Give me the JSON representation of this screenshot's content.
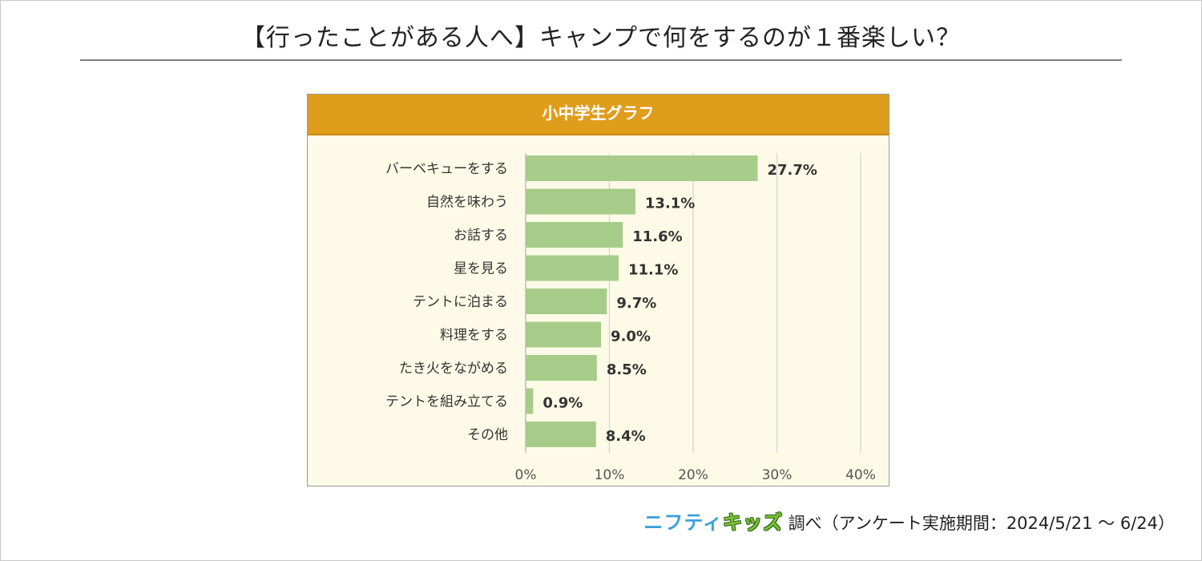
{
  "page": {
    "title": "【行ったことがある人へ】キャンプで何をするのが１番楽しい？"
  },
  "panel": {
    "header": "小中学生グラフ"
  },
  "footer": {
    "brand_part1": "ニフティ",
    "brand_part2": "キッズ",
    "text": "調べ（アンケート実施期間：2024/5/21 ～ 6/24）"
  },
  "chart_data": {
    "type": "bar",
    "orientation": "horizontal",
    "title": "",
    "categories": [
      "バーベキューをする",
      "自然を味わう",
      "お話する",
      "星を見る",
      "テントに泊まる",
      "料理をする",
      "たき火をながめる",
      "テントを組み立てる",
      "その他"
    ],
    "values": [
      27.7,
      13.1,
      11.6,
      11.1,
      9.7,
      9.0,
      8.5,
      0.9,
      8.4
    ],
    "value_labels": [
      "27.7%",
      "13.1%",
      "11.6%",
      "11.1%",
      "9.7%",
      "9.0%",
      "8.5%",
      "0.9%",
      "8.4%"
    ],
    "xlim": [
      0,
      40
    ],
    "ticks": [
      0,
      10,
      20,
      30,
      40
    ],
    "tick_labels": [
      "0%",
      "10%",
      "20%",
      "30%",
      "40%"
    ],
    "grid": true,
    "legend": "none",
    "colors": {
      "bar": "#a7cc8a",
      "header": "#e09d1c",
      "panel_bg": "#fdfbe7",
      "grid": "#d9d9d9"
    }
  }
}
